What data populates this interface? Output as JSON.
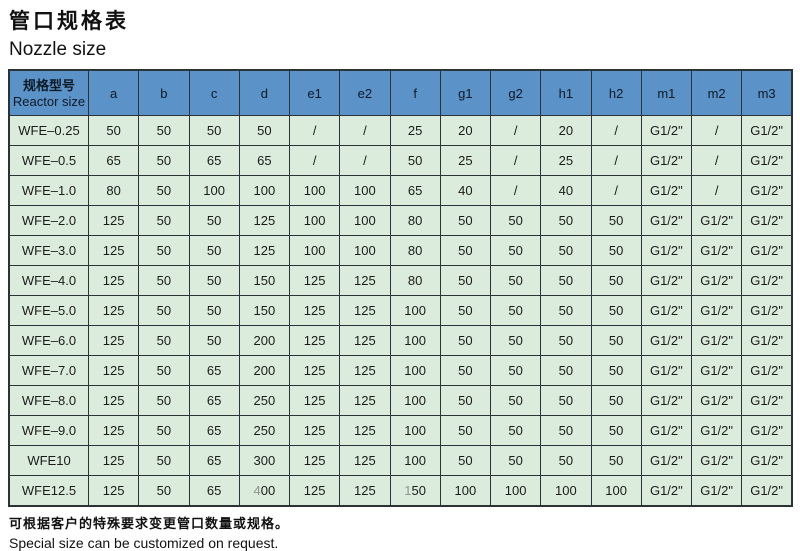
{
  "page": {
    "title_zh": "管口规格表",
    "title_en": "Nozzle size",
    "footnote_zh": "可根据客户的特殊要求变更管口数量或规格。",
    "footnote_en": "Special size can be customized on request."
  },
  "colors": {
    "header_bg": "#5b92c8",
    "row_bg": "#dbecdc",
    "border": "#2b3338",
    "muted_digit": "#8f948f"
  },
  "table": {
    "header": {
      "col0_line1": "规格型号",
      "col0_line2": "Reactor size",
      "columns": [
        "a",
        "b",
        "c",
        "d",
        "e1",
        "e2",
        "f",
        "g1",
        "g2",
        "h1",
        "h2",
        "m1",
        "m2",
        "m3"
      ]
    },
    "rows": [
      {
        "model": "WFE–0.25",
        "values": [
          "50",
          "50",
          "50",
          "50",
          "/",
          "/",
          "25",
          "20",
          "/",
          "20",
          "/",
          "G1/2\"",
          "/",
          "G1/2\""
        ]
      },
      {
        "model": "WFE–0.5",
        "values": [
          "65",
          "50",
          "65",
          "65",
          "/",
          "/",
          "50",
          "25",
          "/",
          "25",
          "/",
          "G1/2\"",
          "/",
          "G1/2\""
        ]
      },
      {
        "model": "WFE–1.0",
        "values": [
          "80",
          "50",
          "100",
          "100",
          "100",
          "100",
          "65",
          "40",
          "/",
          "40",
          "/",
          "G1/2\"",
          "/",
          "G1/2\""
        ]
      },
      {
        "model": "WFE–2.0",
        "values": [
          "125",
          "50",
          "50",
          "125",
          "100",
          "100",
          "80",
          "50",
          "50",
          "50",
          "50",
          "G1/2\"",
          "G1/2\"",
          "G1/2\""
        ]
      },
      {
        "model": "WFE–3.0",
        "values": [
          "125",
          "50",
          "50",
          "125",
          "100",
          "100",
          "80",
          "50",
          "50",
          "50",
          "50",
          "G1/2\"",
          "G1/2\"",
          "G1/2\""
        ]
      },
      {
        "model": "WFE–4.0",
        "values": [
          "125",
          "50",
          "50",
          "150",
          "125",
          "125",
          "80",
          "50",
          "50",
          "50",
          "50",
          "G1/2\"",
          "G1/2\"",
          "G1/2\""
        ]
      },
      {
        "model": "WFE–5.0",
        "values": [
          "125",
          "50",
          "50",
          "150",
          "125",
          "125",
          "100",
          "50",
          "50",
          "50",
          "50",
          "G1/2\"",
          "G1/2\"",
          "G1/2\""
        ]
      },
      {
        "model": "WFE–6.0",
        "values": [
          "125",
          "50",
          "50",
          "200",
          "125",
          "125",
          "100",
          "50",
          "50",
          "50",
          "50",
          "G1/2\"",
          "G1/2\"",
          "G1/2\""
        ]
      },
      {
        "model": "WFE–7.0",
        "values": [
          "125",
          "50",
          "65",
          "200",
          "125",
          "125",
          "100",
          "50",
          "50",
          "50",
          "50",
          "G1/2\"",
          "G1/2\"",
          "G1/2\""
        ]
      },
      {
        "model": "WFE–8.0",
        "values": [
          "125",
          "50",
          "65",
          "250",
          "125",
          "125",
          "100",
          "50",
          "50",
          "50",
          "50",
          "G1/2\"",
          "G1/2\"",
          "G1/2\""
        ]
      },
      {
        "model": "WFE–9.0",
        "values": [
          "125",
          "50",
          "65",
          "250",
          "125",
          "125",
          "100",
          "50",
          "50",
          "50",
          "50",
          "G1/2\"",
          "G1/2\"",
          "G1/2\""
        ]
      },
      {
        "model": "WFE10",
        "values": [
          "125",
          "50",
          "65",
          "300",
          "125",
          "125",
          "100",
          "50",
          "50",
          "50",
          "50",
          "G1/2\"",
          "G1/2\"",
          "G1/2\""
        ]
      },
      {
        "model": "WFE12.5",
        "values": [
          "125",
          "50",
          "65",
          {
            "parts": [
              {
                "text": "4",
                "muted": true
              },
              {
                "text": "00"
              }
            ]
          },
          "125",
          "125",
          {
            "parts": [
              {
                "text": "1",
                "muted": true
              },
              {
                "text": "50"
              }
            ]
          },
          "100",
          "100",
          "100",
          "100",
          "G1/2\"",
          "G1/2\"",
          "G1/2\""
        ]
      }
    ]
  }
}
